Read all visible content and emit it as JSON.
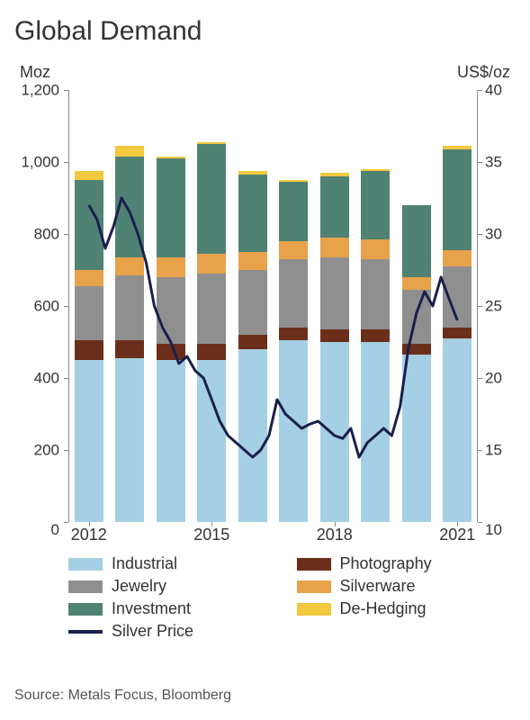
{
  "title": "Global Demand",
  "axis_label_left": "Moz",
  "axis_label_right": "US$/oz",
  "source": "Source: Metals Focus, Bloomberg",
  "chart": {
    "type": "stacked-bar-with-line",
    "background_color": "#ffffff",
    "text_color": "#333333",
    "y_left": {
      "min": 0,
      "max": 1200,
      "ticks": [
        1200,
        1000,
        800,
        600,
        400,
        200,
        0
      ]
    },
    "y_right": {
      "min": 10,
      "max": 40,
      "ticks": [
        40,
        35,
        30,
        25,
        20,
        15,
        10
      ]
    },
    "x_categories": [
      "2012",
      "2013",
      "2014",
      "2015",
      "2016",
      "2017",
      "2018",
      "2019",
      "2020",
      "2021"
    ],
    "x_tick_labels": [
      {
        "label": "2012",
        "at": 0
      },
      {
        "label": "2015",
        "at": 3
      },
      {
        "label": "2018",
        "at": 6
      },
      {
        "label": "2021",
        "at": 9
      }
    ],
    "bar_width": 0.7,
    "series": [
      {
        "key": "industrial",
        "label": "Industrial",
        "color": "#a5cfe4"
      },
      {
        "key": "photography",
        "label": "Photography",
        "color": "#6b2e1a"
      },
      {
        "key": "jewelry",
        "label": "Jewelry",
        "color": "#8f8f8f"
      },
      {
        "key": "silverware",
        "label": "Silverware",
        "color": "#e8a24a"
      },
      {
        "key": "investment",
        "label": "Investment",
        "color": "#508274"
      },
      {
        "key": "dehedging",
        "label": "De-Hedging",
        "color": "#f2c83f"
      }
    ],
    "stacks": [
      {
        "industrial": 450,
        "photography": 55,
        "jewelry": 150,
        "silverware": 45,
        "investment": 250,
        "dehedging": 25
      },
      {
        "industrial": 455,
        "photography": 50,
        "jewelry": 180,
        "silverware": 50,
        "investment": 280,
        "dehedging": 30
      },
      {
        "industrial": 450,
        "photography": 45,
        "jewelry": 185,
        "silverware": 55,
        "investment": 275,
        "dehedging": 5
      },
      {
        "industrial": 450,
        "photography": 45,
        "jewelry": 195,
        "silverware": 55,
        "investment": 305,
        "dehedging": 5
      },
      {
        "industrial": 480,
        "photography": 40,
        "jewelry": 180,
        "silverware": 50,
        "investment": 215,
        "dehedging": 10
      },
      {
        "industrial": 505,
        "photography": 35,
        "jewelry": 190,
        "silverware": 50,
        "investment": 165,
        "dehedging": 5
      },
      {
        "industrial": 500,
        "photography": 35,
        "jewelry": 200,
        "silverware": 55,
        "investment": 170,
        "dehedging": 10
      },
      {
        "industrial": 500,
        "photography": 35,
        "jewelry": 195,
        "silverware": 55,
        "investment": 190,
        "dehedging": 5
      },
      {
        "industrial": 465,
        "photography": 30,
        "jewelry": 150,
        "silverware": 35,
        "investment": 200,
        "dehedging": 0
      },
      {
        "industrial": 510,
        "photography": 30,
        "jewelry": 170,
        "silverware": 45,
        "investment": 280,
        "dehedging": 10
      }
    ],
    "line": {
      "label": "Silver Price",
      "color": "#1a1f4d",
      "width": 3,
      "points": [
        32,
        31,
        29,
        30.5,
        32.5,
        31.5,
        30,
        28,
        25,
        23.5,
        22.5,
        21,
        21.5,
        20.5,
        20,
        18.5,
        17,
        16,
        15.5,
        15,
        14.5,
        15,
        16,
        18.5,
        17.5,
        17,
        16.5,
        16.8,
        17,
        16.5,
        16,
        15.8,
        16.5,
        14.5,
        15.5,
        16,
        16.5,
        16,
        18,
        22,
        24.5,
        26,
        25,
        27,
        25.5,
        24
      ]
    },
    "legend_order": [
      [
        "industrial",
        "photography"
      ],
      [
        "jewelry",
        "silverware"
      ],
      [
        "investment",
        "dehedging"
      ],
      [
        "line",
        null
      ]
    ]
  }
}
